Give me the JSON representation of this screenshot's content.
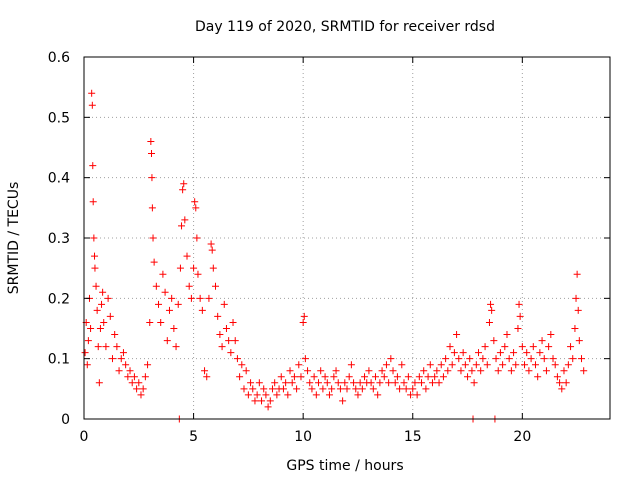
{
  "chart_data": {
    "type": "scatter",
    "title": "Day 119 of 2020, SRMTID for receiver rdsd",
    "xlabel": "GPS time / hours",
    "ylabel": "SRMTID / TECUs",
    "xlim": [
      0,
      24
    ],
    "ylim": [
      0,
      0.6
    ],
    "xticks": [
      "0",
      "5",
      "10",
      "15",
      "20"
    ],
    "yticks": [
      "0",
      "0.1",
      "0.2",
      "0.3",
      "0.4",
      "0.5",
      "0.6"
    ],
    "grid": true,
    "marker": "plus",
    "color": "#ff0000",
    "series": [
      {
        "name": "SRMTID",
        "points": [
          [
            0.05,
            0.11
          ],
          [
            0.1,
            0.16
          ],
          [
            0.15,
            0.09
          ],
          [
            0.2,
            0.13
          ],
          [
            0.25,
            0.2
          ],
          [
            0.3,
            0.15
          ],
          [
            0.35,
            0.54
          ],
          [
            0.38,
            0.52
          ],
          [
            0.4,
            0.42
          ],
          [
            0.42,
            0.36
          ],
          [
            0.45,
            0.3
          ],
          [
            0.48,
            0.27
          ],
          [
            0.5,
            0.25
          ],
          [
            0.55,
            0.22
          ],
          [
            0.6,
            0.18
          ],
          [
            0.65,
            0.12
          ],
          [
            0.7,
            0.06
          ],
          [
            0.75,
            0.15
          ],
          [
            0.8,
            0.19
          ],
          [
            0.85,
            0.21
          ],
          [
            0.9,
            0.16
          ],
          [
            1.0,
            0.12
          ],
          [
            1.1,
            0.2
          ],
          [
            1.2,
            0.17
          ],
          [
            1.3,
            0.1
          ],
          [
            1.4,
            0.14
          ],
          [
            1.5,
            0.12
          ],
          [
            1.6,
            0.08
          ],
          [
            1.7,
            0.1
          ],
          [
            1.8,
            0.11
          ],
          [
            1.9,
            0.09
          ],
          [
            2.0,
            0.07
          ],
          [
            2.1,
            0.08
          ],
          [
            2.2,
            0.06
          ],
          [
            2.3,
            0.07
          ],
          [
            2.4,
            0.05
          ],
          [
            2.5,
            0.06
          ],
          [
            2.6,
            0.04
          ],
          [
            2.7,
            0.05
          ],
          [
            2.8,
            0.07
          ],
          [
            2.9,
            0.09
          ],
          [
            3.0,
            0.16
          ],
          [
            3.05,
            0.46
          ],
          [
            3.08,
            0.44
          ],
          [
            3.1,
            0.4
          ],
          [
            3.12,
            0.35
          ],
          [
            3.15,
            0.3
          ],
          [
            3.2,
            0.26
          ],
          [
            3.3,
            0.22
          ],
          [
            3.4,
            0.19
          ],
          [
            3.5,
            0.16
          ],
          [
            3.6,
            0.24
          ],
          [
            3.7,
            0.21
          ],
          [
            3.8,
            0.13
          ],
          [
            3.9,
            0.18
          ],
          [
            4.0,
            0.2
          ],
          [
            4.1,
            0.15
          ],
          [
            4.2,
            0.12
          ],
          [
            4.3,
            0.19
          ],
          [
            4.4,
            0.25
          ],
          [
            4.45,
            0.32
          ],
          [
            4.5,
            0.38
          ],
          [
            4.55,
            0.39
          ],
          [
            4.6,
            0.33
          ],
          [
            4.7,
            0.27
          ],
          [
            4.8,
            0.22
          ],
          [
            4.9,
            0.2
          ],
          [
            5.0,
            0.25
          ],
          [
            5.05,
            0.36
          ],
          [
            5.1,
            0.35
          ],
          [
            5.15,
            0.3
          ],
          [
            5.2,
            0.24
          ],
          [
            5.3,
            0.2
          ],
          [
            5.4,
            0.18
          ],
          [
            5.5,
            0.08
          ],
          [
            5.6,
            0.07
          ],
          [
            5.7,
            0.2
          ],
          [
            5.8,
            0.29
          ],
          [
            5.85,
            0.28
          ],
          [
            5.9,
            0.25
          ],
          [
            6.0,
            0.22
          ],
          [
            6.1,
            0.17
          ],
          [
            6.2,
            0.14
          ],
          [
            6.3,
            0.12
          ],
          [
            6.4,
            0.19
          ],
          [
            6.5,
            0.15
          ],
          [
            6.6,
            0.13
          ],
          [
            6.7,
            0.11
          ],
          [
            6.8,
            0.16
          ],
          [
            6.9,
            0.13
          ],
          [
            7.0,
            0.1
          ],
          [
            7.1,
            0.07
          ],
          [
            7.2,
            0.09
          ],
          [
            7.3,
            0.05
          ],
          [
            7.4,
            0.08
          ],
          [
            7.5,
            0.04
          ],
          [
            7.6,
            0.06
          ],
          [
            7.7,
            0.05
          ],
          [
            7.8,
            0.03
          ],
          [
            7.9,
            0.04
          ],
          [
            8.0,
            0.06
          ],
          [
            8.1,
            0.03
          ],
          [
            8.2,
            0.05
          ],
          [
            8.3,
            0.04
          ],
          [
            8.4,
            0.02
          ],
          [
            8.5,
            0.03
          ],
          [
            8.6,
            0.05
          ],
          [
            8.7,
            0.06
          ],
          [
            8.8,
            0.04
          ],
          [
            8.9,
            0.05
          ],
          [
            9.0,
            0.07
          ],
          [
            9.1,
            0.05
          ],
          [
            9.2,
            0.06
          ],
          [
            9.3,
            0.04
          ],
          [
            9.4,
            0.08
          ],
          [
            9.5,
            0.06
          ],
          [
            9.6,
            0.07
          ],
          [
            9.7,
            0.05
          ],
          [
            9.8,
            0.09
          ],
          [
            9.9,
            0.07
          ],
          [
            10.0,
            0.16
          ],
          [
            10.05,
            0.17
          ],
          [
            10.1,
            0.1
          ],
          [
            10.2,
            0.08
          ],
          [
            10.3,
            0.06
          ],
          [
            10.4,
            0.05
          ],
          [
            10.5,
            0.07
          ],
          [
            10.6,
            0.04
          ],
          [
            10.7,
            0.06
          ],
          [
            10.8,
            0.08
          ],
          [
            10.9,
            0.05
          ],
          [
            11.0,
            0.07
          ],
          [
            11.1,
            0.06
          ],
          [
            11.2,
            0.04
          ],
          [
            11.3,
            0.05
          ],
          [
            11.4,
            0.07
          ],
          [
            11.5,
            0.08
          ],
          [
            11.6,
            0.06
          ],
          [
            11.7,
            0.05
          ],
          [
            11.8,
            0.03
          ],
          [
            11.9,
            0.06
          ],
          [
            12.0,
            0.05
          ],
          [
            12.1,
            0.07
          ],
          [
            12.2,
            0.09
          ],
          [
            12.3,
            0.06
          ],
          [
            12.4,
            0.05
          ],
          [
            12.5,
            0.04
          ],
          [
            12.6,
            0.06
          ],
          [
            12.7,
            0.05
          ],
          [
            12.8,
            0.07
          ],
          [
            12.9,
            0.06
          ],
          [
            13.0,
            0.08
          ],
          [
            13.1,
            0.06
          ],
          [
            13.2,
            0.05
          ],
          [
            13.3,
            0.07
          ],
          [
            13.4,
            0.04
          ],
          [
            13.5,
            0.06
          ],
          [
            13.6,
            0.08
          ],
          [
            13.7,
            0.07
          ],
          [
            13.8,
            0.09
          ],
          [
            13.9,
            0.06
          ],
          [
            14.0,
            0.1
          ],
          [
            14.1,
            0.08
          ],
          [
            14.2,
            0.06
          ],
          [
            14.3,
            0.07
          ],
          [
            14.4,
            0.05
          ],
          [
            14.5,
            0.09
          ],
          [
            14.6,
            0.06
          ],
          [
            14.7,
            0.05
          ],
          [
            14.8,
            0.07
          ],
          [
            14.9,
            0.04
          ],
          [
            15.0,
            0.05
          ],
          [
            15.1,
            0.06
          ],
          [
            15.2,
            0.04
          ],
          [
            15.3,
            0.07
          ],
          [
            15.4,
            0.06
          ],
          [
            15.5,
            0.08
          ],
          [
            15.6,
            0.05
          ],
          [
            15.7,
            0.07
          ],
          [
            15.8,
            0.09
          ],
          [
            15.9,
            0.06
          ],
          [
            16.0,
            0.07
          ],
          [
            16.1,
            0.08
          ],
          [
            16.2,
            0.06
          ],
          [
            16.3,
            0.09
          ],
          [
            16.4,
            0.07
          ],
          [
            16.5,
            0.1
          ],
          [
            16.6,
            0.08
          ],
          [
            16.7,
            0.12
          ],
          [
            16.8,
            0.09
          ],
          [
            16.9,
            0.11
          ],
          [
            17.0,
            0.14
          ],
          [
            17.1,
            0.1
          ],
          [
            17.2,
            0.08
          ],
          [
            17.3,
            0.11
          ],
          [
            17.4,
            0.09
          ],
          [
            17.5,
            0.07
          ],
          [
            17.6,
            0.1
          ],
          [
            17.7,
            0.08
          ],
          [
            17.8,
            0.06
          ],
          [
            17.9,
            0.09
          ],
          [
            18.0,
            0.11
          ],
          [
            18.1,
            0.08
          ],
          [
            18.2,
            0.1
          ],
          [
            18.3,
            0.12
          ],
          [
            18.4,
            0.09
          ],
          [
            18.5,
            0.16
          ],
          [
            18.55,
            0.19
          ],
          [
            18.6,
            0.18
          ],
          [
            18.7,
            0.13
          ],
          [
            18.8,
            0.1
          ],
          [
            18.9,
            0.08
          ],
          [
            19.0,
            0.11
          ],
          [
            19.1,
            0.09
          ],
          [
            19.2,
            0.12
          ],
          [
            19.3,
            0.14
          ],
          [
            19.4,
            0.1
          ],
          [
            19.5,
            0.08
          ],
          [
            19.6,
            0.11
          ],
          [
            19.7,
            0.09
          ],
          [
            19.8,
            0.15
          ],
          [
            19.85,
            0.19
          ],
          [
            19.9,
            0.17
          ],
          [
            20.0,
            0.12
          ],
          [
            20.1,
            0.09
          ],
          [
            20.2,
            0.11
          ],
          [
            20.3,
            0.08
          ],
          [
            20.4,
            0.1
          ],
          [
            20.5,
            0.12
          ],
          [
            20.6,
            0.09
          ],
          [
            20.7,
            0.07
          ],
          [
            20.8,
            0.11
          ],
          [
            20.9,
            0.13
          ],
          [
            21.0,
            0.1
          ],
          [
            21.1,
            0.08
          ],
          [
            21.2,
            0.12
          ],
          [
            21.3,
            0.14
          ],
          [
            21.4,
            0.1
          ],
          [
            21.5,
            0.09
          ],
          [
            21.6,
            0.07
          ],
          [
            21.7,
            0.06
          ],
          [
            21.8,
            0.05
          ],
          [
            21.9,
            0.08
          ],
          [
            22.0,
            0.06
          ],
          [
            22.1,
            0.09
          ],
          [
            22.2,
            0.12
          ],
          [
            22.3,
            0.1
          ],
          [
            22.4,
            0.15
          ],
          [
            22.45,
            0.2
          ],
          [
            22.5,
            0.24
          ],
          [
            22.55,
            0.18
          ],
          [
            22.6,
            0.13
          ],
          [
            22.7,
            0.1
          ],
          [
            22.8,
            0.08
          ],
          [
            4.35,
            0.0
          ],
          [
            17.75,
            0.0
          ],
          [
            18.75,
            0.0
          ]
        ]
      }
    ]
  }
}
